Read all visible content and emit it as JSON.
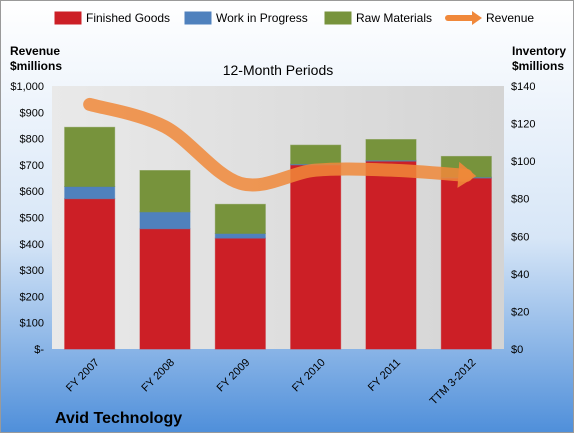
{
  "chart_data": {
    "type": "bar",
    "stacked": true,
    "title": "",
    "subtitle": "12-Month Periods",
    "company": "Avid Technology",
    "categories": [
      "FY 2007",
      "FY 2008",
      "FY 2009",
      "FY 2010",
      "FY 2011",
      "TTM 3-2012"
    ],
    "series": [
      {
        "name": "Finished Goods",
        "axis": "right",
        "color": "#cc1f26",
        "values": [
          80,
          64,
          59,
          98,
          100,
          91
        ]
      },
      {
        "name": "Work in Progress",
        "axis": "right",
        "color": "#4f81bd",
        "values": [
          6.5,
          9,
          2.5,
          0.5,
          0.5,
          0.5
        ]
      },
      {
        "name": "Raw Materials",
        "axis": "right",
        "color": "#77933c",
        "values": [
          31.5,
          22,
          15.5,
          10,
          11,
          11
        ]
      },
      {
        "name": "Revenue",
        "axis": "left",
        "type": "line",
        "color": "#f0883a",
        "values": [
          930,
          845,
          630,
          680,
          680,
          660
        ]
      }
    ],
    "left_axis": {
      "label_line1": "Revenue",
      "label_line2": "$millions",
      "ylim": [
        0,
        1000
      ],
      "ticks": [
        "$-",
        "$100",
        "$200",
        "$300",
        "$400",
        "$500",
        "$600",
        "$700",
        "$800",
        "$900",
        "$1,000"
      ]
    },
    "right_axis": {
      "label_line1": "Inventory",
      "label_line2": "$millions",
      "ylim": [
        0,
        140
      ],
      "ticks": [
        "$0",
        "$20",
        "$40",
        "$60",
        "$80",
        "$100",
        "$120",
        "$140"
      ]
    },
    "legend": {
      "placement": "top"
    },
    "grid": false,
    "background": {
      "top": "#ffffff",
      "bottom": "#4f8fda"
    }
  }
}
